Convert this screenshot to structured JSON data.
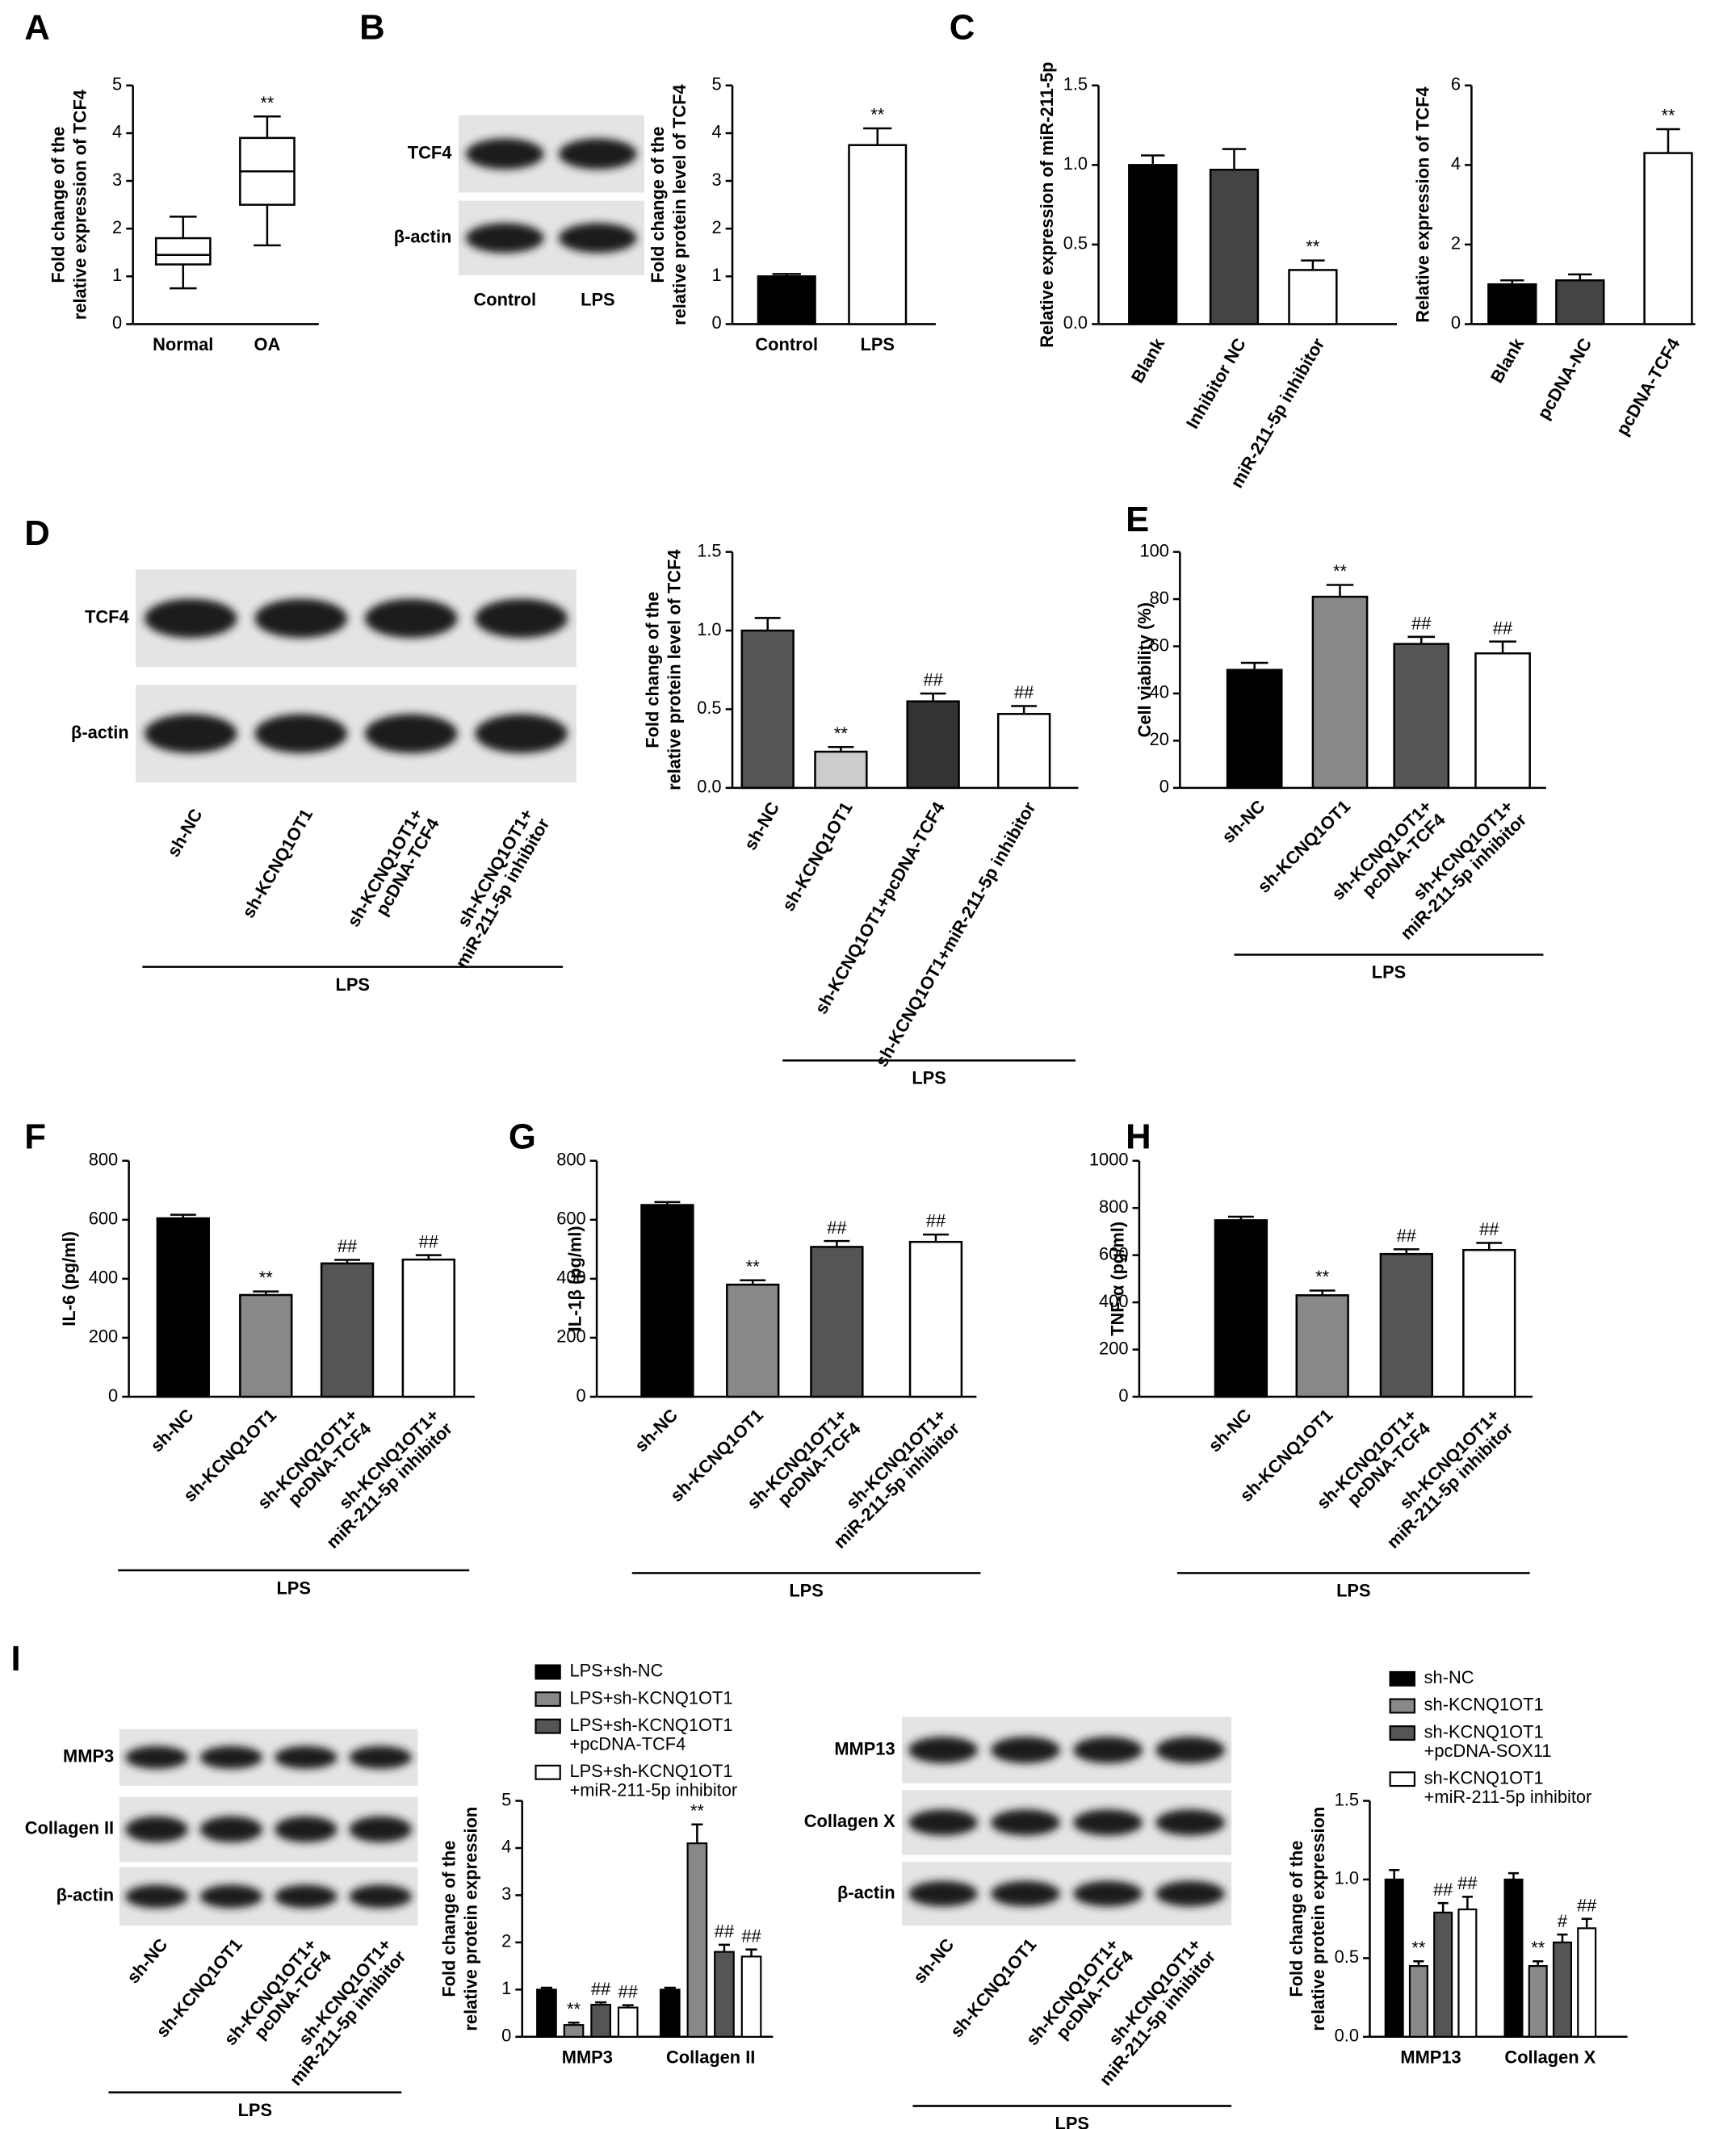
{
  "panels": [
    "A",
    "B",
    "C",
    "D",
    "E",
    "F",
    "G",
    "H",
    "I"
  ],
  "blots": [
    {
      "rows": [
        "TCF4",
        "β-actin"
      ],
      "lanes": [
        [
          "Control"
        ],
        [
          "LPS"
        ]
      ]
    },
    {
      "rows": [
        "TCF4",
        "β-actin"
      ],
      "lanes": [
        [
          "sh-NC"
        ],
        [
          "sh-KCNQ1OT1"
        ],
        [
          "sh-KCNQ1OT1+",
          "pcDNA-TCF4"
        ],
        [
          "sh-KCNQ1OT1+",
          "miR-211-5p inhibitor"
        ]
      ],
      "group": "LPS"
    },
    {
      "rows": [
        "MMP3",
        "Collagen II",
        "β-actin"
      ],
      "lanes": [
        [
          "sh-NC"
        ],
        [
          "sh-KCNQ1OT1"
        ],
        [
          "sh-KCNQ1OT1+",
          "pcDNA-TCF4"
        ],
        [
          "sh-KCNQ1OT1+",
          "miR-211-5p inhibitor"
        ]
      ],
      "group": "LPS"
    },
    {
      "rows": [
        "MMP13",
        "Collagen X",
        "β-actin"
      ],
      "lanes": [
        [
          "sh-NC"
        ],
        [
          "sh-KCNQ1OT1"
        ],
        [
          "sh-KCNQ1OT1+",
          "pcDNA-TCF4"
        ],
        [
          "sh-KCNQ1OT1+",
          "miR-211-5p inhibitor"
        ]
      ],
      "group": "LPS"
    }
  ],
  "chart_data": [
    {
      "type": "box",
      "ylabel": [
        "Fold change of the",
        "relative expression of TCF4"
      ],
      "categories": [
        [
          "Normal"
        ],
        [
          "OA"
        ]
      ],
      "boxes": [
        {
          "min": 0.75,
          "q1": 1.25,
          "median": 1.45,
          "q3": 1.8,
          "max": 2.25
        },
        {
          "min": 1.65,
          "q1": 2.5,
          "median": 3.2,
          "q3": 3.9,
          "max": 4.35
        }
      ],
      "annotations": [
        null,
        "**"
      ],
      "ylim": [
        0,
        5
      ],
      "yticks": [
        0,
        1,
        2,
        3,
        4,
        5
      ]
    },
    {
      "type": "bar",
      "ylabel": [
        "Fold change of the",
        "relative protein level of TCF4"
      ],
      "categories": [
        [
          "Control"
        ],
        [
          "LPS"
        ]
      ],
      "values": [
        1.0,
        3.75
      ],
      "errors": [
        0.05,
        0.35
      ],
      "colors": [
        "#000000",
        "#ffffff"
      ],
      "annotations": [
        null,
        "**"
      ],
      "ylim": [
        0,
        5
      ],
      "yticks": [
        0,
        1,
        2,
        3,
        4,
        5
      ]
    },
    {
      "type": "bar",
      "ylabel": [
        "Relative expression of miR-211-5p"
      ],
      "categories": [
        [
          "Blank"
        ],
        [
          "Inhibitor NC"
        ],
        [
          "miR-211-5p inhibitor"
        ]
      ],
      "values": [
        1.0,
        0.97,
        0.34
      ],
      "errors": [
        0.06,
        0.13,
        0.06
      ],
      "colors": [
        "#000000",
        "#444444",
        "#ffffff"
      ],
      "annotations": [
        null,
        null,
        "**"
      ],
      "ylim": [
        0,
        1.5
      ],
      "yticks": [
        {
          "value": 0,
          "label": "0.0"
        },
        0.5,
        {
          "value": 1,
          "label": "1.0"
        },
        1.5
      ]
    },
    {
      "type": "bar",
      "ylabel": [
        "Relative expression of TCF4"
      ],
      "categories": [
        [
          "Blank"
        ],
        [
          "pcDNA-NC"
        ],
        [
          "pcDNA-TCF4"
        ]
      ],
      "values": [
        1.0,
        1.1,
        4.3
      ],
      "errors": [
        0.1,
        0.15,
        0.6
      ],
      "colors": [
        "#000000",
        "#444444",
        "#ffffff"
      ],
      "annotations": [
        null,
        null,
        "**"
      ],
      "ylim": [
        0,
        6
      ],
      "yticks": [
        0,
        2,
        4,
        6
      ]
    },
    {
      "type": "bar",
      "ylabel": [
        "Fold change of the",
        "relative protein level of TCF4"
      ],
      "categories": [
        [
          "sh-NC"
        ],
        [
          "sh-KCNQ1OT1"
        ],
        [
          "sh-KCNQ1OT1+pcDNA-TCF4"
        ],
        [
          "sh-KCNQ1OT1+miR-211-5p inhibitor"
        ]
      ],
      "values": [
        1.0,
        0.23,
        0.55,
        0.47
      ],
      "errors": [
        0.08,
        0.03,
        0.05,
        0.05
      ],
      "colors": [
        "#555555",
        "#cccccc",
        "#333333",
        "#ffffff"
      ],
      "annotations": [
        null,
        "**",
        "##",
        "##"
      ],
      "ylim": [
        0,
        1.5
      ],
      "yticks": [
        {
          "value": 0,
          "label": "0.0"
        },
        0.5,
        {
          "value": 1,
          "label": "1.0"
        },
        1.5
      ],
      "group": "LPS"
    },
    {
      "type": "bar",
      "ylabel": [
        "Cell viability (%)"
      ],
      "categories": [
        [
          "sh-NC"
        ],
        [
          "sh-KCNQ1OT1"
        ],
        [
          "sh-KCNQ1OT1+",
          "pcDNA-TCF4"
        ],
        [
          "sh-KCNQ1OT1+",
          "miR-211-5p inhibitor"
        ]
      ],
      "values": [
        50,
        81,
        61,
        57
      ],
      "errors": [
        3,
        5,
        3,
        5
      ],
      "colors": [
        "#000000",
        "#888888",
        "#555555",
        "#ffffff"
      ],
      "annotations": [
        null,
        "**",
        "##",
        "##"
      ],
      "ylim": [
        0,
        100
      ],
      "yticks": [
        0,
        20,
        40,
        60,
        80,
        100
      ],
      "group": "LPS"
    },
    {
      "type": "bar",
      "ylabel": [
        "IL-6 (pg/ml)"
      ],
      "categories": [
        [
          "sh-NC"
        ],
        [
          "sh-KCNQ1OT1"
        ],
        [
          "sh-KCNQ1OT1+",
          "pcDNA-TCF4"
        ],
        [
          "sh-KCNQ1OT1+",
          "miR-211-5p inhibitor"
        ]
      ],
      "values": [
        605,
        345,
        452,
        465
      ],
      "errors": [
        12,
        12,
        12,
        15
      ],
      "colors": [
        "#000000",
        "#888888",
        "#555555",
        "#ffffff"
      ],
      "annotations": [
        null,
        "**",
        "##",
        "##"
      ],
      "ylim": [
        0,
        800
      ],
      "yticks": [
        0,
        200,
        400,
        600,
        800
      ],
      "group": "LPS"
    },
    {
      "type": "bar",
      "ylabel": [
        "IL-1β (pg/ml)"
      ],
      "categories": [
        [
          "sh-NC"
        ],
        [
          "sh-KCNQ1OT1"
        ],
        [
          "sh-KCNQ1OT1+",
          "pcDNA-TCF4"
        ],
        [
          "sh-KCNQ1OT1+",
          "miR-211-5p inhibitor"
        ]
      ],
      "values": [
        650,
        380,
        508,
        525
      ],
      "errors": [
        10,
        15,
        20,
        25
      ],
      "colors": [
        "#000000",
        "#888888",
        "#555555",
        "#ffffff"
      ],
      "annotations": [
        null,
        "**",
        "##",
        "##"
      ],
      "ylim": [
        0,
        800
      ],
      "yticks": [
        0,
        200,
        400,
        600,
        800
      ],
      "group": "LPS"
    },
    {
      "type": "bar",
      "ylabel": [
        "TNF-α (pg/ml)"
      ],
      "categories": [
        [
          "sh-NC"
        ],
        [
          "sh-KCNQ1OT1"
        ],
        [
          "sh-KCNQ1OT1+",
          "pcDNA-TCF4"
        ],
        [
          "sh-KCNQ1OT1+",
          "miR-211-5p inhibitor"
        ]
      ],
      "values": [
        748,
        430,
        605,
        622
      ],
      "errors": [
        15,
        20,
        20,
        30
      ],
      "colors": [
        "#000000",
        "#888888",
        "#555555",
        "#ffffff"
      ],
      "annotations": [
        null,
        "**",
        "##",
        "##"
      ],
      "ylim": [
        0,
        1000
      ],
      "yticks": [
        0,
        200,
        400,
        600,
        800,
        1000
      ],
      "group": "LPS"
    },
    {
      "type": "grouped",
      "ylabel": [
        "Fold change of the",
        "relative protein expression"
      ],
      "categories": [
        [
          "MMP3"
        ],
        [
          "Collagen II"
        ]
      ],
      "series": [
        {
          "name": [
            "LPS+sh-NC"
          ],
          "color": "#000000",
          "values": [
            1.0,
            1.0
          ],
          "errors": [
            0.04,
            0.04
          ],
          "annotations": [
            null,
            null
          ]
        },
        {
          "name": [
            "LPS+sh-KCNQ1OT1"
          ],
          "color": "#888888",
          "values": [
            0.25,
            4.1
          ],
          "errors": [
            0.05,
            0.4
          ],
          "annotations": [
            "**",
            "**"
          ]
        },
        {
          "name": [
            "LPS+sh-KCNQ1OT1",
            "+pcDNA-TCF4"
          ],
          "color": "#555555",
          "values": [
            0.68,
            1.8
          ],
          "errors": [
            0.05,
            0.15
          ],
          "annotations": [
            "##",
            "##"
          ]
        },
        {
          "name": [
            "LPS+sh-KCNQ1OT1",
            "+miR-211-5p inhibitor"
          ],
          "color": "#ffffff",
          "values": [
            0.62,
            1.7
          ],
          "errors": [
            0.05,
            0.15
          ],
          "annotations": [
            "##",
            "##"
          ]
        }
      ],
      "ylim": [
        0,
        5
      ],
      "yticks": [
        0,
        1,
        2,
        3,
        4,
        5
      ]
    },
    {
      "type": "grouped",
      "ylabel": [
        "Fold change of the",
        "relative protein expression"
      ],
      "categories": [
        [
          "MMP13"
        ],
        [
          "Collagen X"
        ]
      ],
      "series": [
        {
          "name": [
            "sh-NC"
          ],
          "color": "#000000",
          "values": [
            1.0,
            1.0
          ],
          "errors": [
            0.06,
            0.04
          ],
          "annotations": [
            null,
            null
          ]
        },
        {
          "name": [
            "sh-KCNQ1OT1"
          ],
          "color": "#888888",
          "values": [
            0.45,
            0.45
          ],
          "errors": [
            0.03,
            0.03
          ],
          "annotations": [
            "**",
            "**"
          ]
        },
        {
          "name": [
            "sh-KCNQ1OT1",
            "+pcDNA-SOX11"
          ],
          "color": "#555555",
          "values": [
            0.79,
            0.6
          ],
          "errors": [
            0.06,
            0.05
          ],
          "annotations": [
            "##",
            "#"
          ]
        },
        {
          "name": [
            "sh-KCNQ1OT1",
            "+miR-211-5p inhibitor"
          ],
          "color": "#ffffff",
          "values": [
            0.81,
            0.69
          ],
          "errors": [
            0.08,
            0.06
          ],
          "annotations": [
            "##",
            "##"
          ]
        }
      ],
      "ylim": [
        0,
        1.5
      ],
      "yticks": [
        {
          "value": 0,
          "label": "0.0"
        },
        0.5,
        {
          "value": 1,
          "label": "1.0"
        },
        1.5
      ]
    }
  ]
}
